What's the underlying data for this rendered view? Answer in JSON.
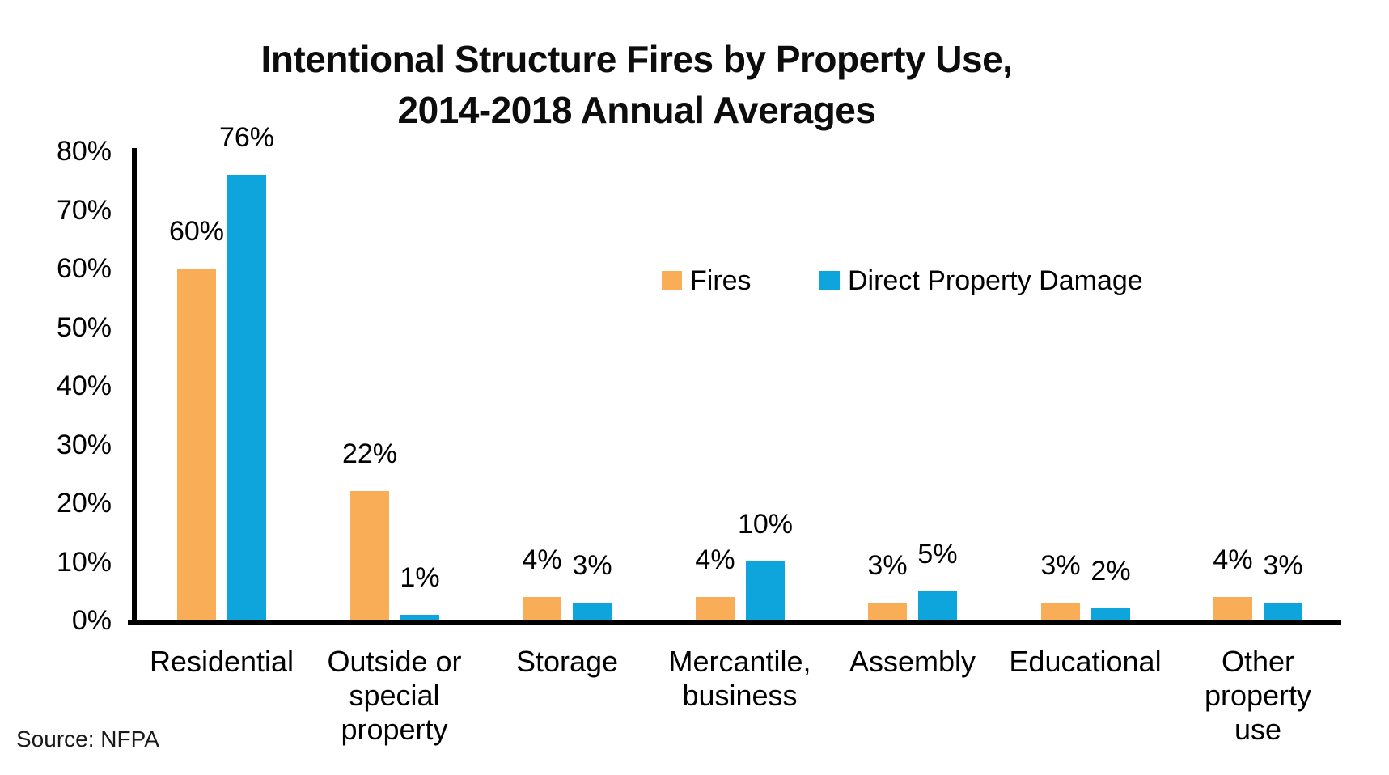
{
  "header": {
    "title_line1": "Intentional Structure Fires by Property Use,",
    "title_line2": "2014-2018 Annual Averages"
  },
  "footer": {
    "source": "Source: NFPA"
  },
  "colors": {
    "fires_orange": "#F8AD56",
    "damage_blue": "#0EA4DC",
    "axis_black": "#000000",
    "text_black": "#000000"
  },
  "chart_data": {
    "type": "bar",
    "title": "Intentional Structure Fires by Property Use, 2014-2018 Annual Averages",
    "categories": [
      "Residential",
      "Outside or\nspecial\nproperty",
      "Storage",
      "Mercantile,\nbusiness",
      "Assembly",
      "Educational",
      "Other\nproperty\nuse"
    ],
    "series": [
      {
        "name": "Fires",
        "color": "#F8AD56",
        "values": [
          60,
          22,
          4,
          4,
          3,
          3,
          4
        ]
      },
      {
        "name": "Direct Property Damage",
        "color": "#0EA4DC",
        "values": [
          76,
          1,
          3,
          10,
          5,
          2,
          3
        ]
      }
    ],
    "xlabel": "",
    "ylabel": "",
    "ylim": [
      0,
      80
    ],
    "ytick_step": 10,
    "ytick_labels": [
      "0%",
      "10%",
      "20%",
      "30%",
      "40%",
      "50%",
      "60%",
      "70%",
      "80%"
    ],
    "data_label_suffix": "%",
    "data_labels": {
      "Fires": [
        "60%",
        "22%",
        "4%",
        "4%",
        "3%",
        "3%",
        "4%"
      ],
      "Direct Property Damage": [
        "76%",
        "1%",
        "3%",
        "10%",
        "5%",
        "2%",
        "3%"
      ]
    },
    "legend_position": "top-right-inside",
    "grid": false,
    "source": "Source: NFPA"
  }
}
